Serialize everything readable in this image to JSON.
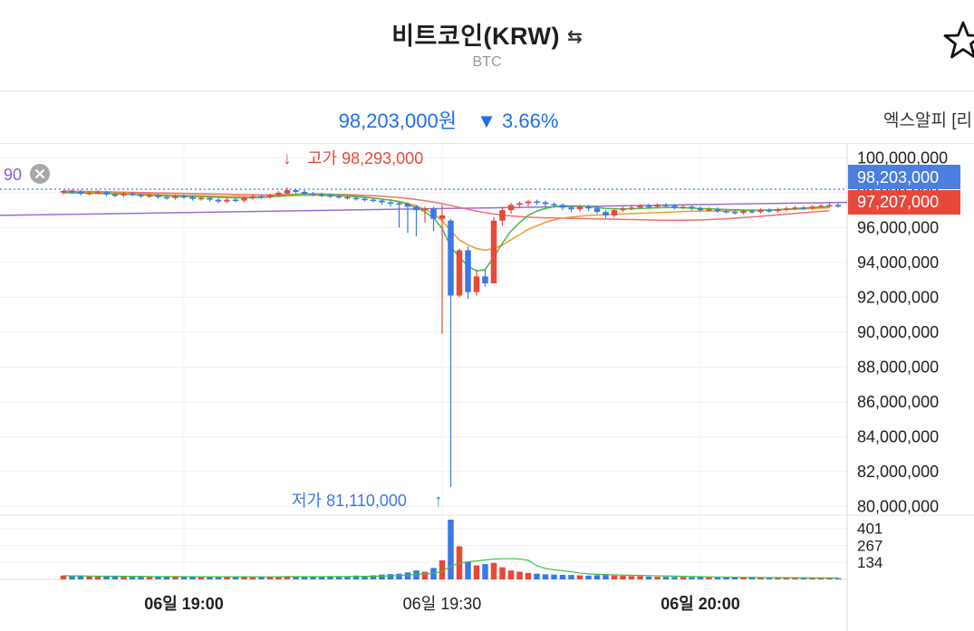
{
  "header": {
    "title": "비트코인(KRW)",
    "swap_icon": "swap-arrows-icon",
    "symbol": "BTC",
    "favorite_icon": "star-outline-icon"
  },
  "ticker": {
    "price": "98,203,000원",
    "change_arrow": "▼",
    "change": "3.66%",
    "change_color": "#1f6feb",
    "exchange_tab": "엑스알피 [리"
  },
  "overlay": {
    "indicator_value": "90",
    "close_icon": "close-circle-icon"
  },
  "annotations": {
    "high_label": "고가 98,293,000",
    "high_arrow": "↓",
    "low_label": "저가 81,110,000",
    "low_arrow": "↑"
  },
  "price_tags": {
    "current": "98,203,000",
    "current_color": "#4a7fe0",
    "secondary": "97,207,000",
    "secondary_color": "#e8483a"
  },
  "colors": {
    "up": "#e8483a",
    "down": "#3b78e7",
    "ma_short": "#3fbf46",
    "ma_mid": "#f29a2e",
    "ma_long": "#ef6f6f",
    "ma_trend": "#9b6ad6"
  },
  "chart_data": {
    "type": "candlestick",
    "y_axis": {
      "range": [
        79500000,
        100800000
      ],
      "ticks": [
        "100,000,000",
        "98,000,000",
        "96,000,000",
        "94,000,000",
        "92,000,000",
        "90,000,000",
        "88,000,000",
        "86,000,000",
        "84,000,000",
        "82,000,000",
        "80,000,000"
      ],
      "tick_values": [
        100000000,
        98000000,
        96000000,
        94000000,
        92000000,
        90000000,
        88000000,
        86000000,
        84000000,
        82000000,
        80000000
      ]
    },
    "x_axis": {
      "ticks": [
        {
          "label": "06일 19:00",
          "bold": true,
          "index": 14
        },
        {
          "label": "06일 19:30",
          "bold": false,
          "index": 44
        },
        {
          "label": "06일 20:00",
          "bold": true,
          "index": 74
        }
      ]
    },
    "volume_axis": {
      "ticks": [
        "401",
        "267",
        "134"
      ],
      "tick_values": [
        401,
        267,
        134
      ],
      "max": 470
    },
    "candles": [
      [
        98000000,
        98100000,
        98150000,
        97900000,
        30
      ],
      [
        98100000,
        98050000,
        98200000,
        97950000,
        25
      ],
      [
        98050000,
        97950000,
        98150000,
        97850000,
        28
      ],
      [
        97950000,
        98000000,
        98100000,
        97850000,
        22
      ],
      [
        98000000,
        98050000,
        98150000,
        97900000,
        20
      ],
      [
        98050000,
        97900000,
        98100000,
        97800000,
        24
      ],
      [
        97900000,
        97850000,
        98000000,
        97750000,
        26
      ],
      [
        97850000,
        97950000,
        98050000,
        97750000,
        21
      ],
      [
        97950000,
        97900000,
        98050000,
        97800000,
        20
      ],
      [
        97900000,
        97800000,
        97950000,
        97700000,
        23
      ],
      [
        97800000,
        97850000,
        97950000,
        97700000,
        19
      ],
      [
        97850000,
        97750000,
        97950000,
        97650000,
        22
      ],
      [
        97750000,
        97700000,
        97850000,
        97600000,
        25
      ],
      [
        97700000,
        97800000,
        97900000,
        97600000,
        20
      ],
      [
        97800000,
        97750000,
        97900000,
        97650000,
        18
      ],
      [
        97750000,
        97650000,
        97850000,
        97550000,
        21
      ],
      [
        97650000,
        97700000,
        97800000,
        97550000,
        17
      ],
      [
        97700000,
        97600000,
        97800000,
        97500000,
        20
      ],
      [
        97600000,
        97500000,
        97700000,
        97400000,
        24
      ],
      [
        97500000,
        97600000,
        97700000,
        97400000,
        19
      ],
      [
        97600000,
        97550000,
        97700000,
        97450000,
        18
      ],
      [
        97550000,
        97700000,
        97800000,
        97450000,
        22
      ],
      [
        97700000,
        97800000,
        97900000,
        97600000,
        20
      ],
      [
        97800000,
        97750000,
        97900000,
        97650000,
        19
      ],
      [
        97750000,
        97850000,
        97950000,
        97650000,
        21
      ],
      [
        97850000,
        98000000,
        98100000,
        97750000,
        23
      ],
      [
        97950000,
        98150000,
        98293000,
        97900000,
        26
      ],
      [
        98150000,
        98050000,
        98200000,
        97950000,
        24
      ],
      [
        98050000,
        97950000,
        98150000,
        97850000,
        22
      ],
      [
        97950000,
        97900000,
        98050000,
        97800000,
        20
      ],
      [
        97900000,
        97850000,
        98000000,
        97750000,
        21
      ],
      [
        97850000,
        97800000,
        97950000,
        97700000,
        24
      ],
      [
        97800000,
        97750000,
        97900000,
        97650000,
        22
      ],
      [
        97750000,
        97700000,
        97850000,
        97600000,
        25
      ],
      [
        97700000,
        97650000,
        97800000,
        97550000,
        30
      ],
      [
        97650000,
        97600000,
        97750000,
        97500000,
        28
      ],
      [
        97600000,
        97550000,
        97700000,
        97450000,
        32
      ],
      [
        97550000,
        97450000,
        97650000,
        97300000,
        38
      ],
      [
        97450000,
        97400000,
        97550000,
        97200000,
        42
      ],
      [
        97400000,
        97350000,
        97500000,
        96000000,
        45
      ],
      [
        97350000,
        97200000,
        97450000,
        95700000,
        55
      ],
      [
        97200000,
        97000000,
        97300000,
        95500000,
        70
      ],
      [
        97000000,
        97100000,
        97200000,
        96300000,
        60
      ],
      [
        97100000,
        96500000,
        97200000,
        95800000,
        90
      ],
      [
        96500000,
        96700000,
        97300000,
        89900000,
        150
      ],
      [
        96400000,
        92100000,
        96500000,
        81110000,
        470
      ],
      [
        92100000,
        94700000,
        94800000,
        92000000,
        260
      ],
      [
        94700000,
        92300000,
        94900000,
        91900000,
        140
      ],
      [
        92300000,
        93200000,
        93600000,
        92100000,
        110
      ],
      [
        93200000,
        92800000,
        93600000,
        92600000,
        120
      ],
      [
        92800000,
        96400000,
        96600000,
        92800000,
        130
      ],
      [
        96400000,
        97000000,
        97200000,
        96100000,
        95
      ],
      [
        97000000,
        97300000,
        97400000,
        96800000,
        70
      ],
      [
        97300000,
        97400000,
        97500000,
        97100000,
        60
      ],
      [
        97400000,
        97500000,
        97600000,
        97200000,
        50
      ],
      [
        97500000,
        97450000,
        97600000,
        97300000,
        45
      ],
      [
        97450000,
        97350000,
        97550000,
        97200000,
        40
      ],
      [
        97350000,
        97300000,
        97450000,
        97150000,
        38
      ],
      [
        97300000,
        97150000,
        97400000,
        97000000,
        36
      ],
      [
        97150000,
        97050000,
        97250000,
        96900000,
        35
      ],
      [
        97050000,
        97200000,
        97300000,
        96900000,
        32
      ],
      [
        97200000,
        97100000,
        97300000,
        96950000,
        30
      ],
      [
        97100000,
        96900000,
        97200000,
        96800000,
        33
      ],
      [
        96900000,
        96700000,
        97000000,
        96550000,
        35
      ],
      [
        96700000,
        97000000,
        97100000,
        96600000,
        30
      ],
      [
        97000000,
        97100000,
        97200000,
        96900000,
        28
      ],
      [
        97100000,
        97150000,
        97300000,
        97000000,
        26
      ],
      [
        97150000,
        97250000,
        97350000,
        97050000,
        25
      ],
      [
        97250000,
        97200000,
        97350000,
        97100000,
        22
      ],
      [
        97200000,
        97300000,
        97400000,
        97100000,
        20
      ],
      [
        97300000,
        97250000,
        97400000,
        97150000,
        20
      ],
      [
        97250000,
        97150000,
        97350000,
        97050000,
        19
      ],
      [
        97150000,
        97200000,
        97300000,
        97050000,
        18
      ],
      [
        97200000,
        97100000,
        97300000,
        97000000,
        17
      ],
      [
        97100000,
        97000000,
        97200000,
        96900000,
        18
      ],
      [
        97000000,
        97050000,
        97150000,
        96900000,
        16
      ],
      [
        97050000,
        96950000,
        97150000,
        96850000,
        15
      ],
      [
        96950000,
        96900000,
        97050000,
        96800000,
        15
      ],
      [
        96900000,
        96850000,
        97000000,
        96750000,
        14
      ],
      [
        96850000,
        96950000,
        97050000,
        96750000,
        14
      ],
      [
        96950000,
        96900000,
        97050000,
        96800000,
        13
      ],
      [
        96900000,
        97000000,
        97100000,
        96800000,
        13
      ],
      [
        97000000,
        96950000,
        97100000,
        96850000,
        12
      ],
      [
        96950000,
        97050000,
        97150000,
        96850000,
        12
      ],
      [
        97050000,
        97100000,
        97200000,
        96950000,
        11
      ],
      [
        97100000,
        97150000,
        97250000,
        97000000,
        12
      ],
      [
        97150000,
        97100000,
        97250000,
        97000000,
        11
      ],
      [
        97100000,
        97200000,
        97300000,
        97000000,
        10
      ],
      [
        97200000,
        97250000,
        97350000,
        97100000,
        12
      ],
      [
        97250000,
        97300000,
        97400000,
        97150000,
        11
      ],
      [
        97300000,
        97207000,
        97400000,
        97150000,
        10
      ]
    ],
    "ma_short": [
      98000000,
      97990000,
      97980000,
      97970000,
      97960000,
      97950000,
      97940000,
      97920000,
      97900000,
      97880000,
      97860000,
      97840000,
      97820000,
      97800000,
      97790000,
      97780000,
      97770000,
      97760000,
      97740000,
      97720000,
      97700000,
      97700000,
      97710000,
      97730000,
      97760000,
      97800000,
      97850000,
      97900000,
      97920000,
      97930000,
      97920000,
      97900000,
      97870000,
      97840000,
      97800000,
      97750000,
      97700000,
      97640000,
      97570000,
      97480000,
      97350000,
      97150000,
      96900000,
      96550000,
      95950000,
      94900000,
      94300000,
      93800000,
      93500000,
      93600000,
      94300000,
      95100000,
      95800000,
      96300000,
      96700000,
      96950000,
      97100000,
      97200000,
      97250000,
      97250000,
      97240000,
      97200000,
      97150000,
      97100000,
      97080000,
      97070000,
      97080000,
      97100000,
      97120000,
      97140000,
      97150000,
      97150000,
      97140000,
      97120000,
      97100000,
      97080000,
      97060000,
      97040000,
      97020000,
      97010000,
      97000000,
      97000000,
      97010000,
      97030000,
      97060000,
      97090000,
      97120000,
      97150000,
      97180000,
      97200000
    ],
    "ma_mid": [
      98050000,
      98040000,
      98030000,
      98020000,
      98010000,
      98000000,
      97990000,
      97980000,
      97960000,
      97940000,
      97920000,
      97900000,
      97880000,
      97860000,
      97850000,
      97840000,
      97830000,
      97820000,
      97800000,
      97790000,
      97780000,
      97770000,
      97770000,
      97780000,
      97790000,
      97800000,
      97820000,
      97840000,
      97850000,
      97850000,
      97840000,
      97830000,
      97810000,
      97790000,
      97760000,
      97730000,
      97690000,
      97640000,
      97580000,
      97500000,
      97400000,
      97250000,
      97050000,
      96800000,
      96400000,
      95800000,
      95300000,
      95000000,
      94800000,
      94700000,
      94800000,
      95000000,
      95300000,
      95600000,
      95900000,
      96100000,
      96300000,
      96450000,
      96550000,
      96600000,
      96650000,
      96700000,
      96720000,
      96740000,
      96760000,
      96780000,
      96800000,
      96820000,
      96840000,
      96860000,
      96880000,
      96900000,
      96920000,
      96940000,
      96950000,
      96950000,
      96950000,
      96960000,
      96970000,
      96980000,
      96990000,
      97000000,
      97010000,
      97020000,
      97040000,
      97060000,
      97080000,
      97100000,
      97120000,
      97140000
    ],
    "ma_long": [
      98100000,
      98090000,
      98080000,
      98070000,
      98060000,
      98050000,
      98040000,
      98030000,
      98020000,
      98010000,
      98000000,
      97990000,
      97980000,
      97970000,
      97960000,
      97950000,
      97940000,
      97930000,
      97920000,
      97910000,
      97900000,
      97890000,
      97880000,
      97880000,
      97880000,
      97890000,
      97900000,
      97910000,
      97920000,
      97920000,
      97920000,
      97910000,
      97900000,
      97890000,
      97870000,
      97850000,
      97830000,
      97800000,
      97760000,
      97720000,
      97670000,
      97610000,
      97540000,
      97460000,
      97370000,
      97270000,
      97160000,
      97050000,
      96950000,
      96860000,
      96780000,
      96720000,
      96670000,
      96630000,
      96600000,
      96580000,
      96560000,
      96550000,
      96540000,
      96530000,
      96520000,
      96510000,
      96500000,
      96490000,
      96480000,
      96470000,
      96460000,
      96450000,
      96440000,
      96430000,
      96420000,
      96420000,
      96420000,
      96430000,
      96440000,
      96460000,
      96480000,
      96510000,
      96540000,
      96570000,
      96610000,
      96650000,
      96690000,
      96730000,
      96770000,
      96810000,
      96850000,
      96890000,
      96930000,
      96970000
    ],
    "ma_trend_line": {
      "from": 96700000,
      "to": 97450000
    },
    "current_price_line": 98203000
  }
}
